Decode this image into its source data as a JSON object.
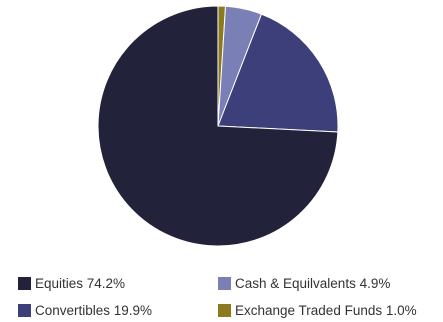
{
  "chart_data": {
    "type": "pie",
    "title": "",
    "slices": [
      {
        "label": "Equities",
        "value": 74.2,
        "display": "Equities 74.2%",
        "color": "#22223a"
      },
      {
        "label": "Convertibles",
        "value": 19.9,
        "display": "Convertibles 19.9%",
        "color": "#3d3f7a"
      },
      {
        "label": "Cash & Equilvalents",
        "value": 4.9,
        "display": "Cash & Equilvalents 4.9%",
        "color": "#7a80b5"
      },
      {
        "label": "Exchange Traded Funds",
        "value": 1.0,
        "display": "Exchange Traded Funds 1.0%",
        "color": "#8c7a1e"
      }
    ],
    "draw_order": [
      "Exchange Traded Funds",
      "Cash & Equilvalents",
      "Convertibles",
      "Equities"
    ],
    "legend_position": "bottom"
  }
}
